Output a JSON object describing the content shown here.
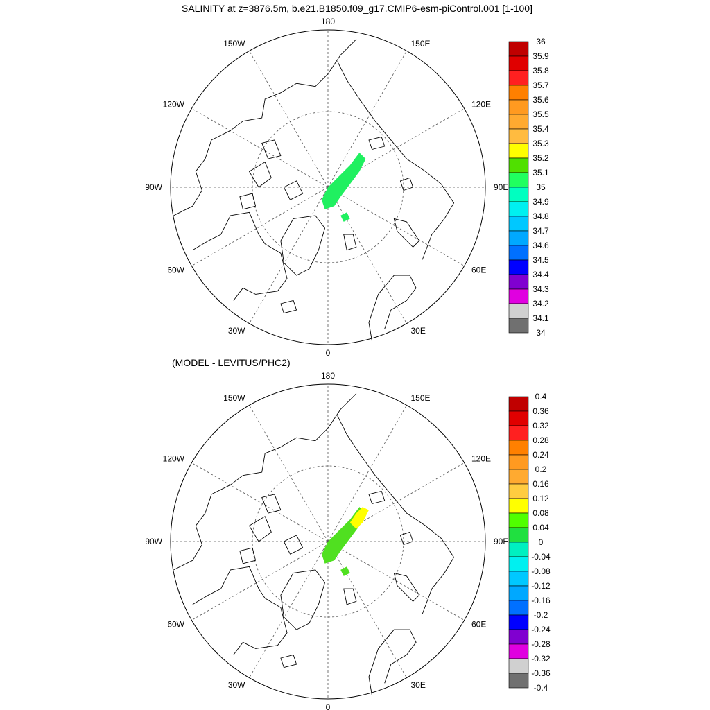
{
  "page": {
    "title": "SALINITY at z=3876.5m, b.e21.B1850.f09_g17.CMIP6-esm-piControl.001 [1-100]",
    "subtitle": "(MODEL - LEVITUS/PHC2)"
  },
  "longitude_labels": [
    {
      "lon": 180,
      "text": "180"
    },
    {
      "lon": 150,
      "text": "150E"
    },
    {
      "lon": 120,
      "text": "120E"
    },
    {
      "lon": 90,
      "text": "90E"
    },
    {
      "lon": 60,
      "text": "60E"
    },
    {
      "lon": 30,
      "text": "30E"
    },
    {
      "lon": 0,
      "text": "0"
    },
    {
      "lon": -30,
      "text": "30W"
    },
    {
      "lon": -60,
      "text": "60W"
    },
    {
      "lon": -90,
      "text": "90W"
    },
    {
      "lon": -120,
      "text": "120W"
    },
    {
      "lon": -150,
      "text": "150W"
    }
  ],
  "maps": [
    {
      "name": "salinity",
      "colorbar": {
        "labels": [
          "36",
          "35.9",
          "35.8",
          "35.7",
          "35.6",
          "35.5",
          "35.4",
          "35.3",
          "35.2",
          "35.1",
          "35",
          "34.9",
          "34.8",
          "34.7",
          "34.6",
          "34.5",
          "34.4",
          "34.3",
          "34.2",
          "34.1",
          "34"
        ],
        "colors": [
          "#c00000",
          "#e00000",
          "#ff2020",
          "#ff8000",
          "#ff9a20",
          "#ffaa30",
          "#ffbb40",
          "#ffff00",
          "#50e000",
          "#20ff60",
          "#00ffc0",
          "#00f0f0",
          "#00c8ff",
          "#00a8ff",
          "#0070ff",
          "#0000ff",
          "#8000d0",
          "#e000e0",
          "#d0d0d0",
          "#707070"
        ]
      },
      "field_color": "#20f060",
      "field_secondary": null
    },
    {
      "name": "difference",
      "colorbar": {
        "labels": [
          "0.4",
          "0.36",
          "0.32",
          "0.28",
          "0.24",
          "0.2",
          "0.16",
          "0.12",
          "0.08",
          "0.04",
          "0",
          "-0.04",
          "-0.08",
          "-0.12",
          "-0.16",
          "-0.2",
          "-0.24",
          "-0.28",
          "-0.32",
          "-0.36",
          "-0.4"
        ],
        "colors": [
          "#c00000",
          "#e00000",
          "#ff2020",
          "#ff8000",
          "#ff9a20",
          "#ffaa30",
          "#ffcc40",
          "#ffff00",
          "#50ff00",
          "#20e040",
          "#00f0c0",
          "#00f0f0",
          "#00c8ff",
          "#00a8ff",
          "#0070ff",
          "#0000ff",
          "#8000d0",
          "#e000e0",
          "#d0d0d0",
          "#707070"
        ]
      },
      "field_color": "#50e020",
      "field_secondary": "#ffff00"
    }
  ]
}
